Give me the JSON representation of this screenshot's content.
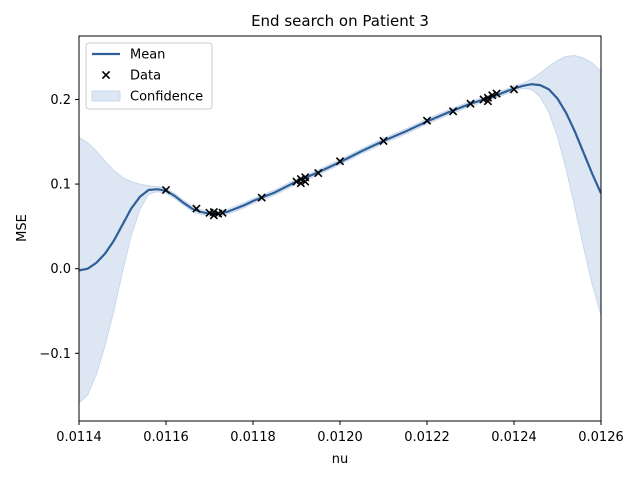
{
  "chart_data": {
    "type": "line",
    "title": "End search on Patient 3",
    "xlabel": "nu",
    "ylabel": "MSE",
    "xlim": [
      0.0114,
      0.0126
    ],
    "ylim": [
      -0.18,
      0.275
    ],
    "xticks": [
      0.0114,
      0.0116,
      0.0118,
      0.012,
      0.0122,
      0.0124,
      0.0126
    ],
    "xtick_labels": [
      "0.0114",
      "0.0116",
      "0.0118",
      "0.0120",
      "0.0122",
      "0.0124",
      "0.0126"
    ],
    "yticks": [
      -0.1,
      0.0,
      0.1,
      0.2
    ],
    "ytick_labels": [
      "−0.1",
      "0.0",
      "0.1",
      "0.2"
    ],
    "grid": false,
    "legend": {
      "placement": "top-left",
      "entries": [
        {
          "label": "Mean",
          "kind": "line"
        },
        {
          "label": "Data",
          "kind": "marker"
        },
        {
          "label": "Confidence",
          "kind": "patch"
        }
      ]
    },
    "colors": {
      "mean": "#2f5f98",
      "band_fill": "#dde6f3",
      "band_edge": "#c3d3e9",
      "marker": "#000000"
    },
    "series": [
      {
        "name": "Mean",
        "x": [
          0.0114,
          0.01142,
          0.01144,
          0.01146,
          0.01148,
          0.0115,
          0.01152,
          0.01154,
          0.01156,
          0.01158,
          0.0116,
          0.01162,
          0.01164,
          0.01166,
          0.01168,
          0.0117,
          0.01172,
          0.01174,
          0.01176,
          0.01178,
          0.0118,
          0.01185,
          0.0119,
          0.01195,
          0.012,
          0.01205,
          0.0121,
          0.01215,
          0.0122,
          0.01225,
          0.0123,
          0.01235,
          0.01238,
          0.0124,
          0.01242,
          0.01244,
          0.01246,
          0.01248,
          0.0125,
          0.01252,
          0.01254,
          0.01256,
          0.01258,
          0.0126
        ],
        "y": [
          -0.002,
          0.0,
          0.007,
          0.018,
          0.033,
          0.052,
          0.071,
          0.085,
          0.093,
          0.094,
          0.092,
          0.086,
          0.078,
          0.071,
          0.067,
          0.065,
          0.065,
          0.067,
          0.071,
          0.075,
          0.08,
          0.09,
          0.103,
          0.114,
          0.126,
          0.139,
          0.151,
          0.162,
          0.174,
          0.185,
          0.195,
          0.203,
          0.209,
          0.213,
          0.216,
          0.218,
          0.217,
          0.212,
          0.201,
          0.184,
          0.162,
          0.137,
          0.112,
          0.089
        ]
      },
      {
        "name": "Confidence",
        "x": [
          0.0114,
          0.01142,
          0.01144,
          0.01146,
          0.01148,
          0.0115,
          0.01152,
          0.01154,
          0.01156,
          0.01158,
          0.0116,
          0.01162,
          0.01164,
          0.01166,
          0.01168,
          0.0117,
          0.01172,
          0.01174,
          0.01176,
          0.01178,
          0.0118,
          0.01185,
          0.0119,
          0.01195,
          0.012,
          0.01205,
          0.0121,
          0.01215,
          0.0122,
          0.01225,
          0.0123,
          0.01235,
          0.01238,
          0.0124,
          0.01242,
          0.01244,
          0.01246,
          0.01248,
          0.0125,
          0.01252,
          0.01254,
          0.01256,
          0.01258,
          0.0126
        ],
        "upper": [
          0.155,
          0.149,
          0.139,
          0.127,
          0.116,
          0.108,
          0.103,
          0.1,
          0.098,
          0.097,
          0.095,
          0.089,
          0.081,
          0.074,
          0.07,
          0.068,
          0.068,
          0.07,
          0.074,
          0.078,
          0.083,
          0.093,
          0.106,
          0.117,
          0.129,
          0.142,
          0.154,
          0.165,
          0.177,
          0.188,
          0.198,
          0.206,
          0.212,
          0.216,
          0.219,
          0.224,
          0.231,
          0.239,
          0.246,
          0.251,
          0.252,
          0.249,
          0.243,
          0.233
        ],
        "lower": [
          -0.159,
          -0.149,
          -0.125,
          -0.091,
          -0.05,
          -0.004,
          0.039,
          0.07,
          0.088,
          0.091,
          0.089,
          0.083,
          0.075,
          0.068,
          0.064,
          0.062,
          0.062,
          0.064,
          0.068,
          0.072,
          0.077,
          0.087,
          0.1,
          0.111,
          0.123,
          0.136,
          0.148,
          0.159,
          0.171,
          0.182,
          0.192,
          0.2,
          0.206,
          0.21,
          0.213,
          0.212,
          0.203,
          0.185,
          0.156,
          0.117,
          0.072,
          0.025,
          -0.019,
          -0.055
        ]
      },
      {
        "name": "Data",
        "x": [
          0.0116,
          0.01167,
          0.0117,
          0.01171,
          0.01171,
          0.01172,
          0.01173,
          0.01182,
          0.0119,
          0.01191,
          0.01191,
          0.01192,
          0.01192,
          0.01195,
          0.012,
          0.0121,
          0.0122,
          0.01226,
          0.0123,
          0.01233,
          0.01234,
          0.01234,
          0.01235,
          0.01236,
          0.0124
        ],
        "y": [
          0.093,
          0.071,
          0.066,
          0.063,
          0.067,
          0.065,
          0.066,
          0.084,
          0.103,
          0.101,
          0.106,
          0.103,
          0.108,
          0.113,
          0.127,
          0.151,
          0.175,
          0.186,
          0.195,
          0.2,
          0.202,
          0.198,
          0.205,
          0.207,
          0.212
        ]
      }
    ]
  }
}
